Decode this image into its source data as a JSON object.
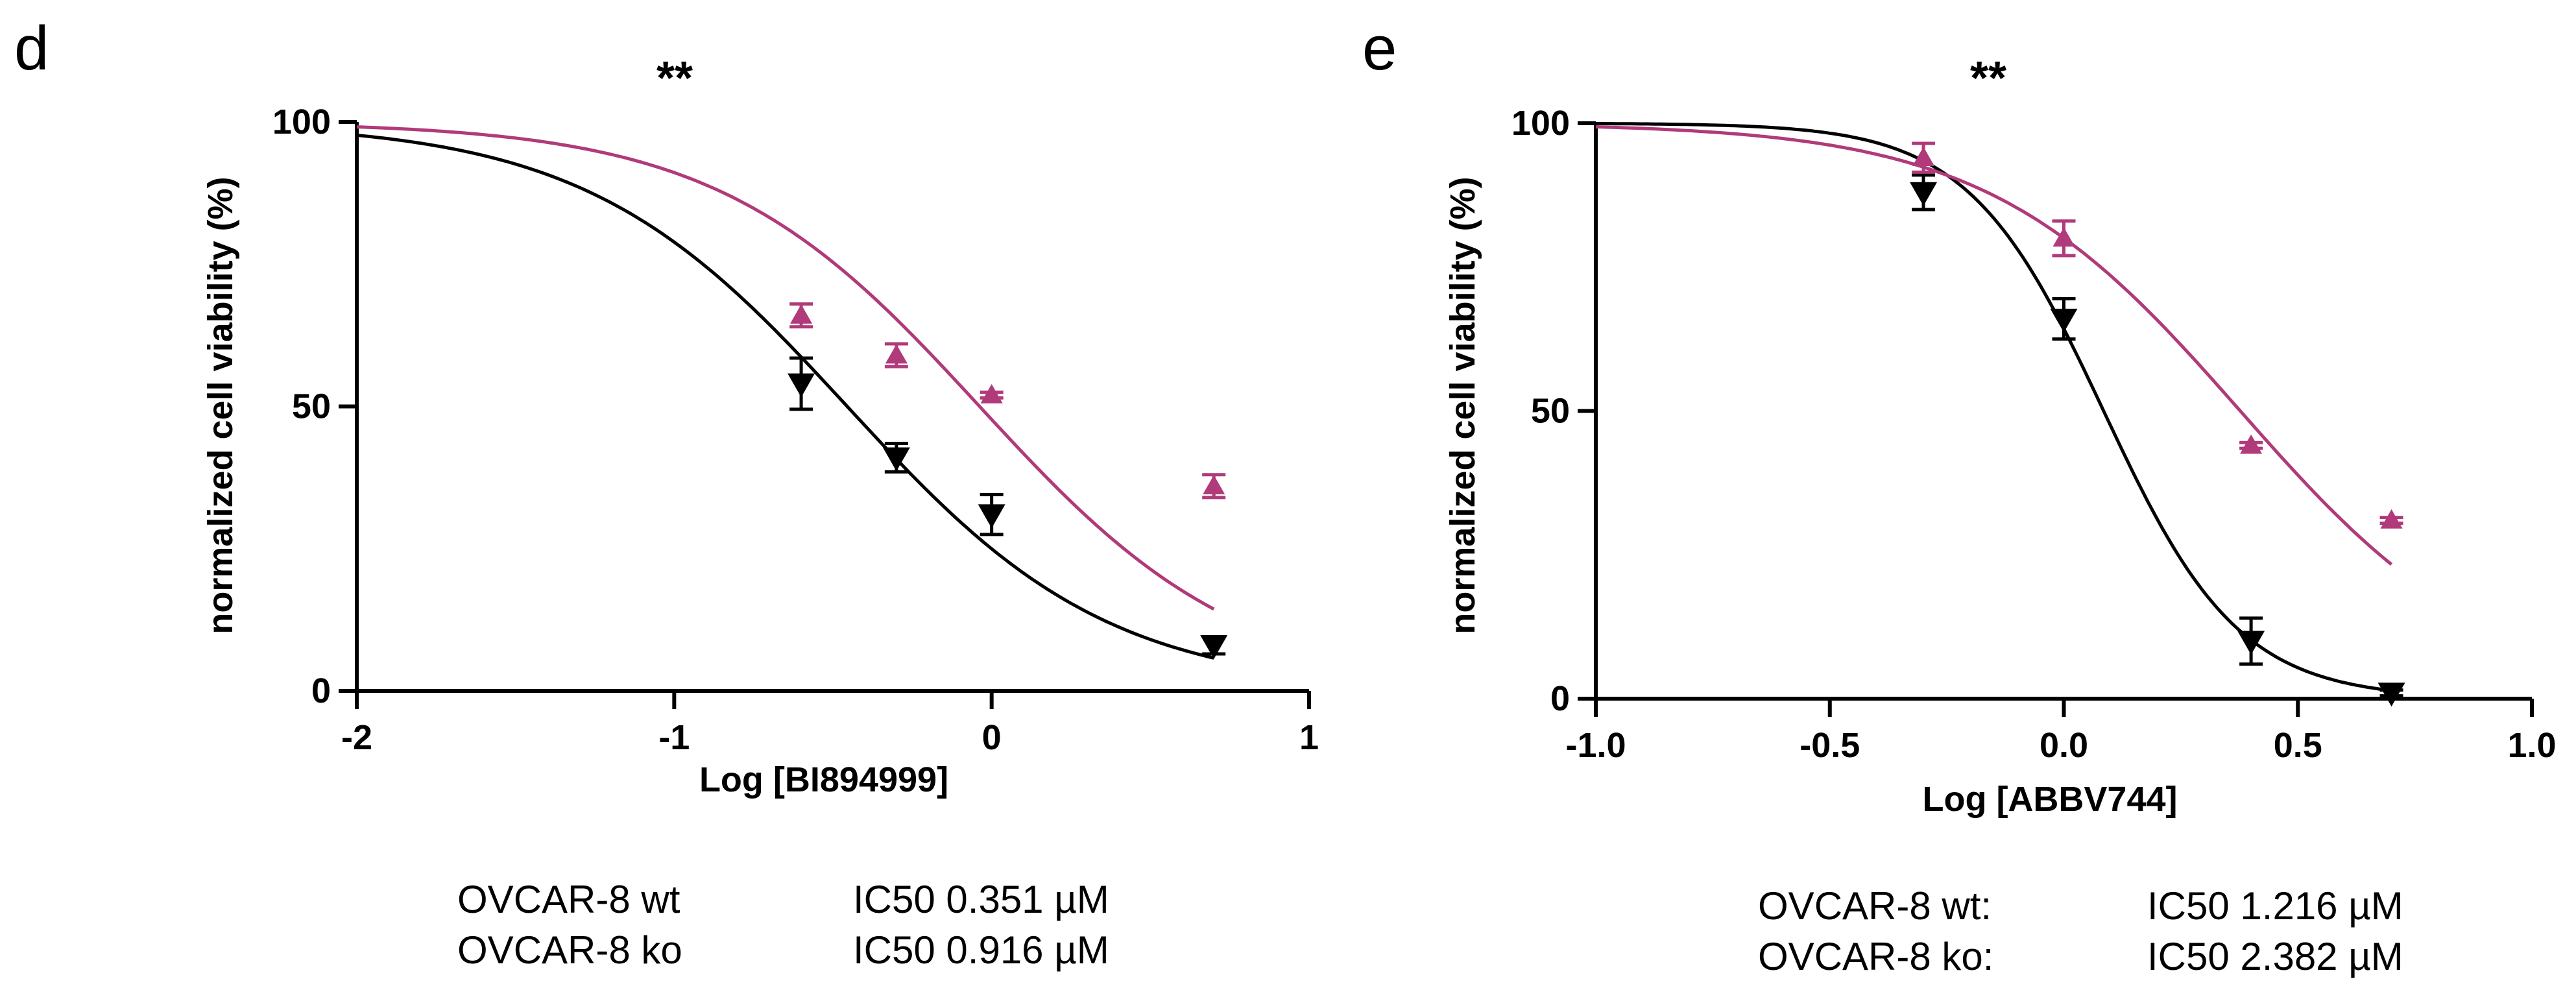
{
  "colors": {
    "wt": "#000000",
    "ko": "#b03a7a"
  },
  "chart_data": [
    {
      "type": "line",
      "panel_label": "d",
      "significance": "**",
      "title": "",
      "xlabel": "Log [BI894999]",
      "ylabel": "normalized cell viability (%)",
      "xlim": [
        -2,
        1
      ],
      "ylim": [
        0,
        100
      ],
      "x_ticks": [
        -2,
        -1,
        0,
        1
      ],
      "x_tick_labels": [
        "-2",
        "-1",
        "0",
        "1"
      ],
      "y_ticks": [
        0,
        50,
        100
      ],
      "y_tick_labels": [
        "0",
        "50",
        "100"
      ],
      "series": [
        {
          "name": "OVCAR-8 wt",
          "marker": "triangle-down",
          "color": "#000000",
          "x": [
            -0.6,
            -0.3,
            0.0,
            0.7
          ],
          "y": [
            54,
            41,
            31,
            8
          ],
          "err": [
            4.5,
            2.5,
            3.5,
            1.5
          ],
          "fit": {
            "top": 100,
            "bottom": 0,
            "log_ic50": -0.455,
            "hill": 1.05
          }
        },
        {
          "name": "OVCAR-8 ko",
          "marker": "triangle-up",
          "color": "#b03a7a",
          "x": [
            -0.6,
            -0.3,
            0.0,
            0.7
          ],
          "y": [
            66,
            59,
            52,
            36
          ],
          "err": [
            2,
            2,
            0.5,
            2
          ],
          "fit": {
            "top": 100,
            "bottom": 0,
            "log_ic50": -0.038,
            "hill": 1.05
          }
        }
      ],
      "ic50_table": [
        {
          "label": "OVCAR-8 wt",
          "value": "IC50 0.351 µM"
        },
        {
          "label": "OVCAR-8 ko",
          "value": "IC50 0.916 µM"
        }
      ]
    },
    {
      "type": "line",
      "panel_label": "e",
      "significance": "**",
      "title": "",
      "xlabel": "Log [ABBV744]",
      "ylabel": "normalized cell viability (%)",
      "xlim": [
        -1.0,
        1.0
      ],
      "ylim": [
        0,
        100
      ],
      "x_ticks": [
        -1.0,
        -0.5,
        0.0,
        0.5,
        1.0
      ],
      "x_tick_labels": [
        "-1.0",
        "-0.5",
        "0.0",
        "0.5",
        "1.0"
      ],
      "y_ticks": [
        0,
        50,
        100
      ],
      "y_tick_labels": [
        "0",
        "50",
        "100"
      ],
      "series": [
        {
          "name": "OVCAR-8 wt:",
          "marker": "triangle-down",
          "color": "#000000",
          "x": [
            -0.3,
            0.0,
            0.4,
            0.7
          ],
          "y": [
            88,
            66,
            10,
            1
          ],
          "err": [
            3,
            3.5,
            4,
            0.5
          ],
          "fit": {
            "top": 100,
            "bottom": 0,
            "log_ic50": 0.085,
            "hill": 3.0
          }
        },
        {
          "name": "OVCAR-8 ko:",
          "marker": "triangle-up",
          "color": "#b03a7a",
          "x": [
            -0.3,
            0.0,
            0.4,
            0.7
          ],
          "y": [
            94,
            80,
            44,
            31
          ],
          "err": [
            2.5,
            3,
            0.5,
            0.5
          ],
          "fit": {
            "top": 100,
            "bottom": 0,
            "log_ic50": 0.377,
            "hill": 1.6
          }
        }
      ],
      "ic50_table": [
        {
          "label": "OVCAR-8 wt:",
          "value": "IC50 1.216 µM"
        },
        {
          "label": "OVCAR-8 ko:",
          "value": "IC50 2.382 µM"
        }
      ]
    }
  ]
}
